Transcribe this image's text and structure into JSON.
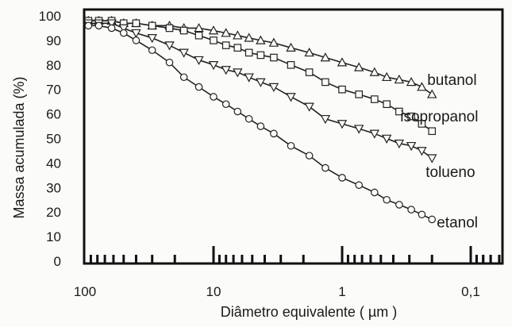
{
  "chart_data": {
    "type": "line",
    "xlabel": "Diâmetro equivalente ( µm )",
    "ylabel": "Massa acumulada (%)",
    "x_scale": "log",
    "x_reversed": true,
    "xlim": [
      100,
      0.05
    ],
    "ylim": [
      0,
      100
    ],
    "x_tick_labels": [
      {
        "value": 100,
        "label": "100"
      },
      {
        "value": 10,
        "label": "10"
      },
      {
        "value": 1,
        "label": "1"
      },
      {
        "value": 0.1,
        "label": "0,1"
      }
    ],
    "y_ticks": [
      0,
      10,
      20,
      30,
      40,
      50,
      60,
      70,
      80,
      90,
      100
    ],
    "grid": false,
    "legend": "inline labels at line ends",
    "series": [
      {
        "name": "butanol",
        "marker": "triangle-up",
        "x": [
          94,
          78,
          62,
          50,
          40,
          30,
          22,
          17,
          13,
          10,
          8,
          6.5,
          5.3,
          4.3,
          3.4,
          2.5,
          1.8,
          1.35,
          1.0,
          0.74,
          0.56,
          0.45,
          0.36,
          0.29,
          0.24,
          0.2
        ],
        "y": [
          98,
          98,
          98,
          97,
          97,
          96,
          96,
          95,
          95,
          94,
          93,
          92,
          91,
          90,
          89,
          87,
          85,
          83,
          81,
          79,
          77,
          75,
          74,
          73,
          71,
          68
        ]
      },
      {
        "name": "isopropanol",
        "marker": "square",
        "x": [
          94,
          78,
          62,
          50,
          40,
          30,
          22,
          17,
          13,
          10,
          8,
          6.5,
          5.3,
          4.3,
          3.4,
          2.5,
          1.8,
          1.35,
          1.0,
          0.74,
          0.56,
          0.45,
          0.36,
          0.29,
          0.24,
          0.2
        ],
        "y": [
          98,
          98,
          98,
          97,
          97,
          96,
          95,
          94,
          92,
          90,
          88,
          87,
          85,
          84,
          83,
          80,
          77,
          73,
          70,
          68,
          66,
          64,
          61,
          59,
          56,
          53
        ]
      },
      {
        "name": "tolueno",
        "marker": "triangle-down",
        "x": [
          94,
          78,
          62,
          50,
          40,
          30,
          22,
          17,
          13,
          10,
          8,
          6.5,
          5.3,
          4.3,
          3.4,
          2.5,
          1.8,
          1.35,
          1.0,
          0.74,
          0.56,
          0.45,
          0.36,
          0.29,
          0.24,
          0.2
        ],
        "y": [
          97,
          97,
          97,
          95,
          93,
          91,
          88,
          85,
          82,
          80,
          78,
          77,
          75,
          73,
          71,
          67,
          63,
          58,
          56,
          54,
          52,
          50,
          48,
          47,
          45,
          42
        ]
      },
      {
        "name": "etanol",
        "marker": "circle",
        "x": [
          94,
          78,
          62,
          50,
          40,
          30,
          22,
          17,
          13,
          10,
          8,
          6.5,
          5.3,
          4.3,
          3.4,
          2.5,
          1.8,
          1.35,
          1.0,
          0.74,
          0.56,
          0.45,
          0.36,
          0.29,
          0.24,
          0.2
        ],
        "y": [
          96,
          96,
          95,
          93,
          90,
          86,
          81,
          75,
          71,
          67,
          64,
          61,
          58,
          55,
          52,
          47,
          43,
          38,
          34,
          31,
          28,
          25,
          23,
          21,
          19,
          17
        ]
      }
    ]
  }
}
